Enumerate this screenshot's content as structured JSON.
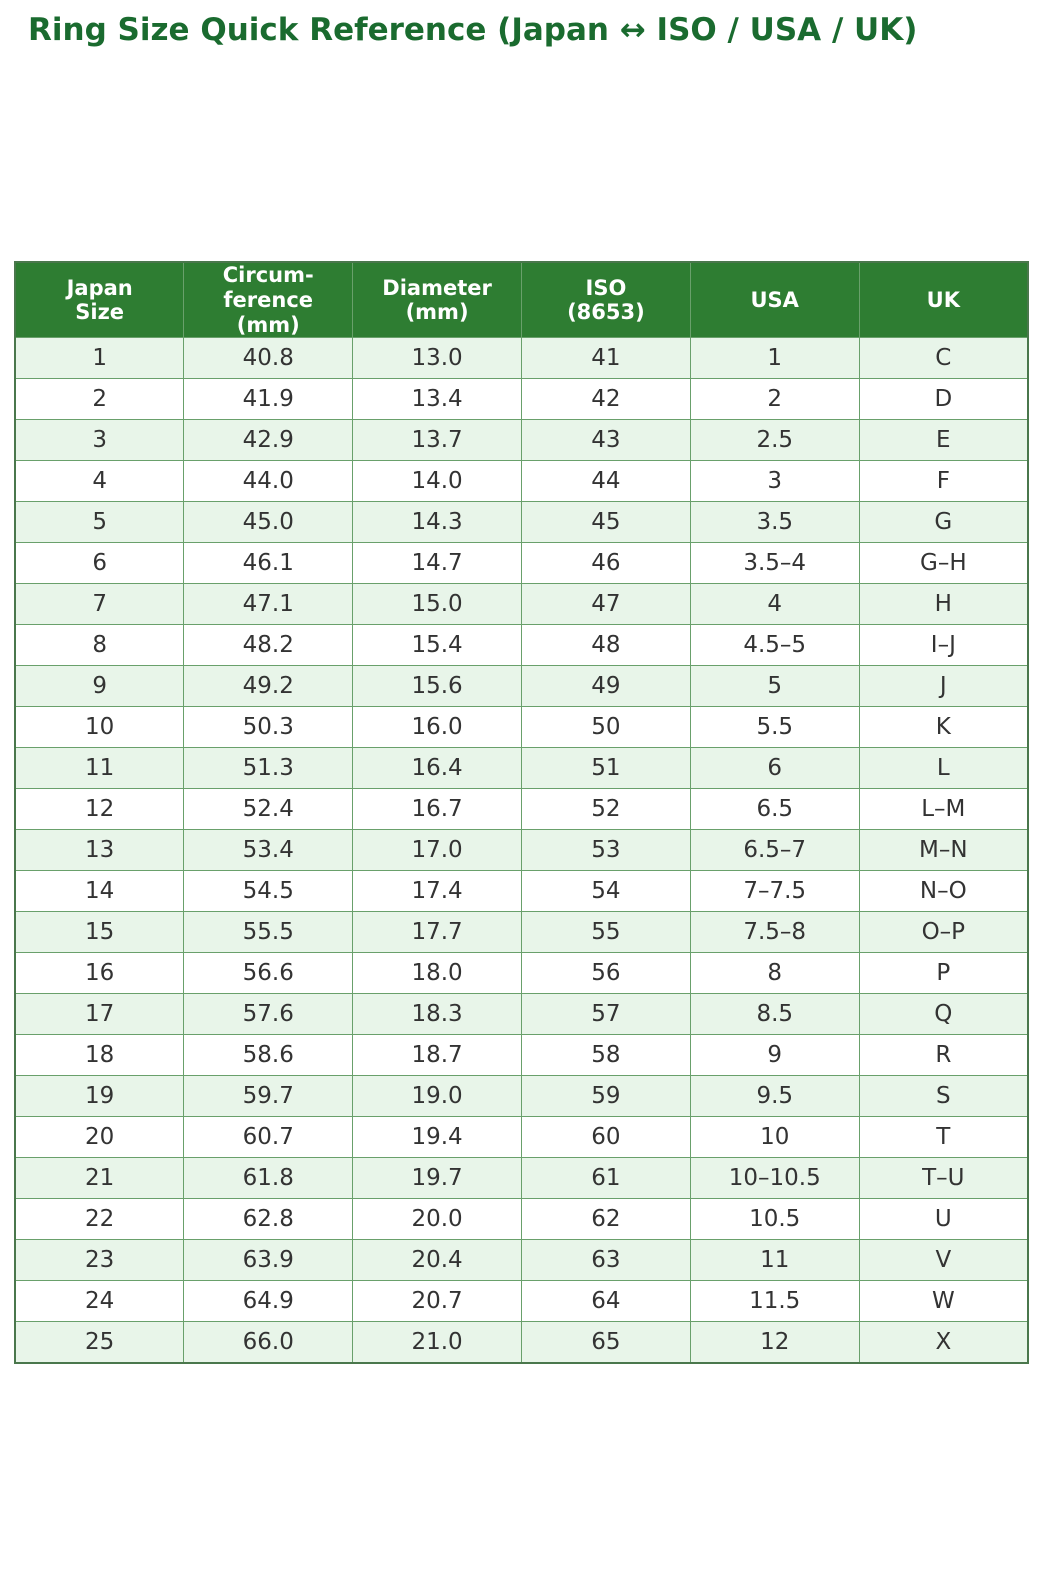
{
  "title": "Ring Size Quick Reference (Japan ↔ ISO / USA / UK)",
  "colors": {
    "title_text": "#1a6b2f",
    "header_bg": "#2e7d32",
    "header_text": "#ffffff",
    "row_alt_bg": "#e8f5e9",
    "row_bg": "#ffffff",
    "border": "#69a06b",
    "cell_text": "#333333"
  },
  "table": {
    "columns": [
      "Japan\nSize",
      "Circum-\nference\n(mm)",
      "Diameter\n(mm)",
      "ISO\n(8653)",
      "USA",
      "UK"
    ],
    "rows": [
      [
        "1",
        "40.8",
        "13.0",
        "41",
        "1",
        "C"
      ],
      [
        "2",
        "41.9",
        "13.4",
        "42",
        "2",
        "D"
      ],
      [
        "3",
        "42.9",
        "13.7",
        "43",
        "2.5",
        "E"
      ],
      [
        "4",
        "44.0",
        "14.0",
        "44",
        "3",
        "F"
      ],
      [
        "5",
        "45.0",
        "14.3",
        "45",
        "3.5",
        "G"
      ],
      [
        "6",
        "46.1",
        "14.7",
        "46",
        "3.5–4",
        "G–H"
      ],
      [
        "7",
        "47.1",
        "15.0",
        "47",
        "4",
        "H"
      ],
      [
        "8",
        "48.2",
        "15.4",
        "48",
        "4.5–5",
        "I–J"
      ],
      [
        "9",
        "49.2",
        "15.6",
        "49",
        "5",
        "J"
      ],
      [
        "10",
        "50.3",
        "16.0",
        "50",
        "5.5",
        "K"
      ],
      [
        "11",
        "51.3",
        "16.4",
        "51",
        "6",
        "L"
      ],
      [
        "12",
        "52.4",
        "16.7",
        "52",
        "6.5",
        "L–M"
      ],
      [
        "13",
        "53.4",
        "17.0",
        "53",
        "6.5–7",
        "M–N"
      ],
      [
        "14",
        "54.5",
        "17.4",
        "54",
        "7–7.5",
        "N–O"
      ],
      [
        "15",
        "55.5",
        "17.7",
        "55",
        "7.5–8",
        "O–P"
      ],
      [
        "16",
        "56.6",
        "18.0",
        "56",
        "8",
        "P"
      ],
      [
        "17",
        "57.6",
        "18.3",
        "57",
        "8.5",
        "Q"
      ],
      [
        "18",
        "58.6",
        "18.7",
        "58",
        "9",
        "R"
      ],
      [
        "19",
        "59.7",
        "19.0",
        "59",
        "9.5",
        "S"
      ],
      [
        "20",
        "60.7",
        "19.4",
        "60",
        "10",
        "T"
      ],
      [
        "21",
        "61.8",
        "19.7",
        "61",
        "10–10.5",
        "T–U"
      ],
      [
        "22",
        "62.8",
        "20.0",
        "62",
        "10.5",
        "U"
      ],
      [
        "23",
        "63.9",
        "20.4",
        "63",
        "11",
        "V"
      ],
      [
        "24",
        "64.9",
        "20.7",
        "64",
        "11.5",
        "W"
      ],
      [
        "25",
        "66.0",
        "21.0",
        "65",
        "12",
        "X"
      ]
    ]
  }
}
